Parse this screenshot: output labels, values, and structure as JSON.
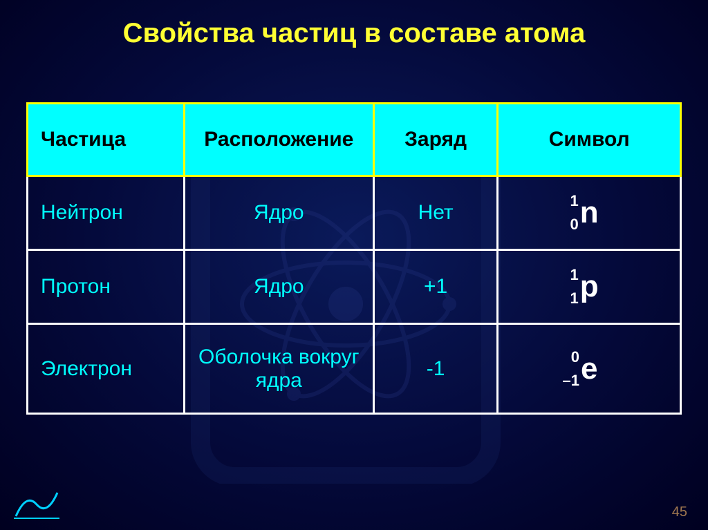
{
  "title": "Свойства частиц в составе атома",
  "page_number": "45",
  "colors": {
    "title_text": "#ffff33",
    "header_bg": "#00ffff",
    "header_text": "#000000",
    "header_border": "#ffff00",
    "body_border": "#ffffff",
    "body_text": "#00ffff",
    "symbol_text": "#ffffff",
    "page_num_text": "#a07850",
    "logo_text": "#00e0ff"
  },
  "table": {
    "col_widths": [
      "24%",
      "29%",
      "19%",
      "28%"
    ],
    "columns": [
      "Частица",
      "Расположение",
      "Заряд",
      "Символ"
    ],
    "rows": [
      {
        "particle": "Нейтрон",
        "location": "Ядро",
        "charge": "Нет",
        "symbol": {
          "main": "n",
          "sup": "1",
          "sub": "0"
        }
      },
      {
        "particle": "Протон",
        "location": "Ядро",
        "charge": "+1",
        "symbol": {
          "main": "p",
          "sup": "1",
          "sub": "1"
        }
      },
      {
        "particle": "Электрон",
        "location": "Оболочка вокруг ядра",
        "charge": "-1",
        "symbol": {
          "main": "e",
          "sup": "0",
          "sub": "–1"
        }
      }
    ]
  }
}
